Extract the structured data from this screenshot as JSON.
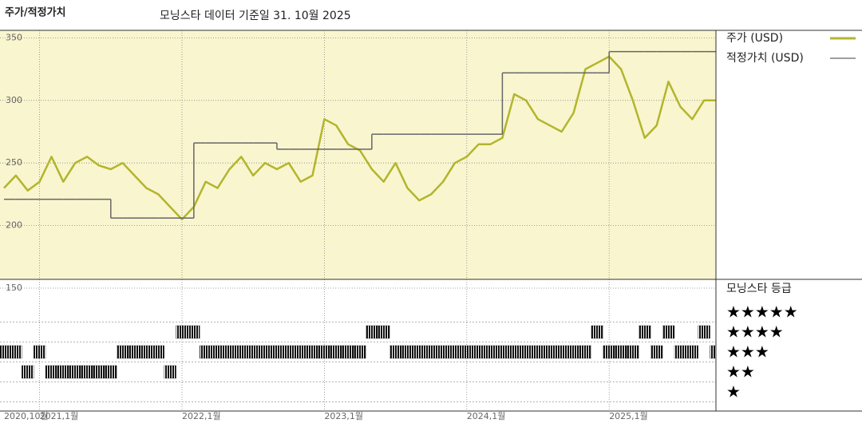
{
  "header": {
    "title": "주가/적정가치",
    "subtitle": "모닝스타 데이터 기준일 31. 10월 2025"
  },
  "chart_data": [
    {
      "type": "line",
      "x": [
        "2020-10",
        "2020-11",
        "2020-12",
        "2021-01",
        "2021-02",
        "2021-03",
        "2021-04",
        "2021-05",
        "2021-06",
        "2021-07",
        "2021-08",
        "2021-09",
        "2021-10",
        "2021-11",
        "2021-12",
        "2022-01",
        "2022-02",
        "2022-03",
        "2022-04",
        "2022-05",
        "2022-06",
        "2022-07",
        "2022-08",
        "2022-09",
        "2022-10",
        "2022-11",
        "2022-12",
        "2023-01",
        "2023-02",
        "2023-03",
        "2023-04",
        "2023-05",
        "2023-06",
        "2023-07",
        "2023-08",
        "2023-09",
        "2023-10",
        "2023-11",
        "2023-12",
        "2024-01",
        "2024-02",
        "2024-03",
        "2024-04",
        "2024-05",
        "2024-06",
        "2024-07",
        "2024-08",
        "2024-09",
        "2024-10",
        "2024-11",
        "2024-12",
        "2025-01",
        "2025-02",
        "2025-03",
        "2025-04",
        "2025-05",
        "2025-06",
        "2025-07",
        "2025-08",
        "2025-09",
        "2025-10"
      ],
      "series": [
        {
          "name": "주가 (USD)",
          "color": "#b3b52c",
          "values": [
            230,
            240,
            228,
            235,
            255,
            235,
            250,
            255,
            248,
            245,
            250,
            240,
            230,
            225,
            215,
            205,
            215,
            235,
            230,
            245,
            255,
            240,
            250,
            245,
            250,
            235,
            240,
            285,
            280,
            265,
            260,
            245,
            235,
            250,
            230,
            220,
            225,
            235,
            250,
            255,
            265,
            265,
            270,
            305,
            300,
            285,
            280,
            275,
            290,
            325,
            330,
            335,
            325,
            300,
            270,
            280,
            315,
            295,
            285,
            300,
            300
          ]
        },
        {
          "name": "적정가치 (USD)",
          "color": "#666666",
          "step": true,
          "values": [
            221,
            221,
            221,
            221,
            221,
            221,
            221,
            221,
            221,
            206,
            206,
            206,
            206,
            206,
            206,
            206,
            266,
            266,
            266,
            266,
            266,
            266,
            266,
            261,
            261,
            261,
            261,
            261,
            261,
            261,
            261,
            273,
            273,
            273,
            273,
            273,
            273,
            273,
            273,
            273,
            273,
            273,
            322,
            322,
            322,
            322,
            322,
            322,
            322,
            322,
            322,
            339,
            339,
            339,
            339,
            339,
            339,
            339,
            339,
            339,
            339
          ]
        }
      ],
      "ylim": [
        150,
        356
      ],
      "yticks": [
        150,
        200,
        250,
        300,
        350
      ],
      "xticks": [
        {
          "value": "2020-10",
          "label": "2020,10월"
        },
        {
          "value": "2021-01",
          "label": "2021,1월"
        },
        {
          "value": "2022-01",
          "label": "2022,1월"
        },
        {
          "value": "2023-01",
          "label": "2023,1월"
        },
        {
          "value": "2024-01",
          "label": "2024,1월"
        },
        {
          "value": "2025-01",
          "label": "2025,1월"
        }
      ],
      "grid": true,
      "background": "#f9f5cf"
    },
    {
      "type": "rating",
      "title": "모닝스타 등급",
      "color": "#111111",
      "levels": [
        {
          "value": 5,
          "label": "★★★★★"
        },
        {
          "value": 4,
          "label": "★★★★"
        },
        {
          "value": 3,
          "label": "★★★"
        },
        {
          "value": 2,
          "label": "★★"
        },
        {
          "value": 1,
          "label": "★"
        }
      ],
      "values": [
        3,
        3,
        2,
        3,
        2,
        2,
        2,
        2,
        2,
        2,
        3,
        3,
        3,
        3,
        2,
        4,
        4,
        3,
        3,
        3,
        3,
        3,
        3,
        3,
        3,
        3,
        3,
        3,
        3,
        3,
        3,
        4,
        4,
        3,
        3,
        3,
        3,
        3,
        3,
        3,
        3,
        3,
        3,
        3,
        3,
        3,
        3,
        3,
        3,
        3,
        4,
        3,
        3,
        3,
        4,
        3,
        4,
        3,
        3,
        4,
        3
      ]
    }
  ]
}
